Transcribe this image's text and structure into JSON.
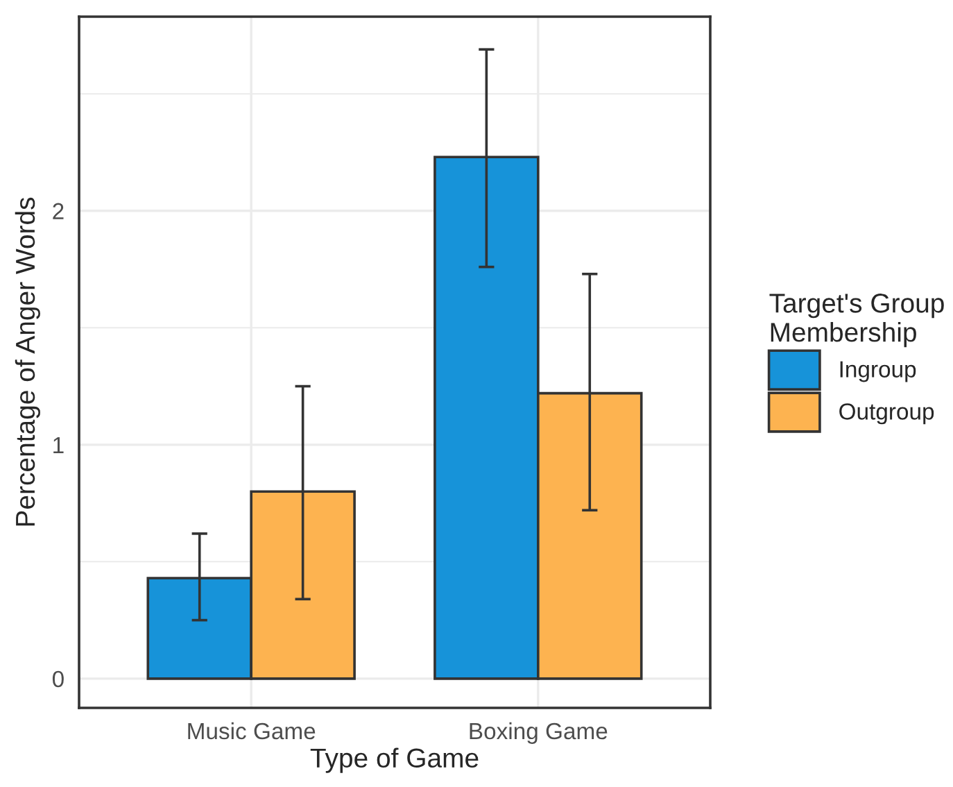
{
  "chart_data": {
    "type": "bar",
    "xlabel": "Type of Game",
    "ylabel": "Percentage of Anger Words",
    "legend_title": "Target's Group\nMembership",
    "categories": [
      "Music Game",
      "Boxing Game"
    ],
    "series": [
      {
        "name": "Ingroup",
        "color": "#1793d9",
        "values": [
          0.43,
          2.23
        ],
        "errors": [
          [
            0.25,
            0.62
          ],
          [
            1.76,
            2.69
          ]
        ]
      },
      {
        "name": "Outgroup",
        "color": "#fdb350",
        "values": [
          0.8,
          1.22
        ],
        "errors": [
          [
            0.34,
            1.25
          ],
          [
            0.72,
            1.73
          ]
        ]
      }
    ],
    "ylim": [
      -0.125,
      2.83
    ],
    "yticks": [
      0,
      {
        "value": 0.5,
        "label": null
      },
      1,
      {
        "value": 1.5,
        "label": null
      },
      2,
      {
        "value": 2.5,
        "label": null
      }
    ],
    "grid": true,
    "legend": "right"
  }
}
